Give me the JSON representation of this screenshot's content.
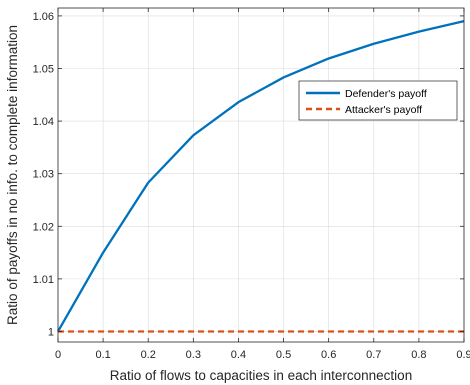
{
  "chart_data": {
    "type": "line",
    "xlabel": "Ratio of flows to capacities in each interconnection",
    "ylabel": "Ratio of payoffs in no info. to complete information",
    "xlim": [
      0,
      0.9
    ],
    "ylim": [
      0.998,
      1.0615
    ],
    "x_ticks": [
      "0",
      "0.1",
      "0.2",
      "0.3",
      "0.4",
      "0.5",
      "0.6",
      "0.7",
      "0.8",
      "0.9"
    ],
    "y_ticks": [
      "1",
      "1.01",
      "1.02",
      "1.03",
      "1.04",
      "1.05",
      "1.06"
    ],
    "grid": true,
    "legend_position": "top-right",
    "x": [
      0,
      0.1,
      0.2,
      0.3,
      0.4,
      0.5,
      0.6,
      0.7,
      0.8,
      0.9
    ],
    "series": [
      {
        "name": "Defender's payoff",
        "color": "#0072BD",
        "style": "solid",
        "values": [
          1.0,
          1.015,
          1.0283,
          1.0373,
          1.0436,
          1.0483,
          1.0519,
          1.0547,
          1.057,
          1.059
        ]
      },
      {
        "name": "Attacker's payoff",
        "color": "#D95319",
        "style": "dashed",
        "values": [
          1.0,
          1.0,
          1.0,
          1.0,
          1.0,
          1.0,
          1.0,
          1.0,
          1.0,
          1.0
        ]
      }
    ]
  }
}
